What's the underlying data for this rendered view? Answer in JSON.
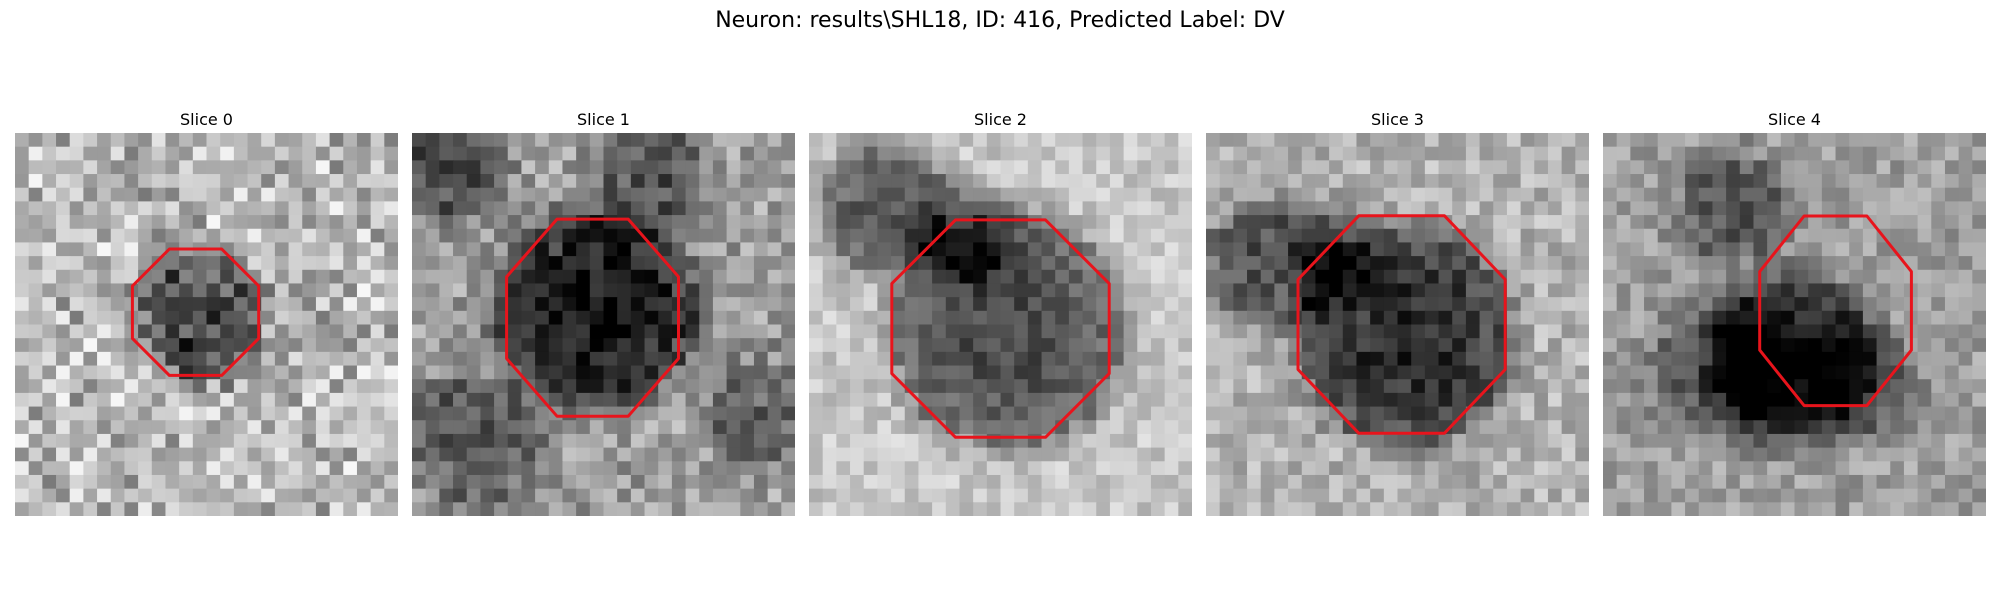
{
  "figure_title": "Neuron: results\\SHL18, ID: 416, Predicted Label: DV",
  "contour_color": "#e8141c",
  "slices": [
    {
      "label": "Slice 0"
    },
    {
      "label": "Slice 1"
    },
    {
      "label": "Slice 2"
    },
    {
      "label": "Slice 3"
    },
    {
      "label": "Slice 4"
    }
  ]
}
